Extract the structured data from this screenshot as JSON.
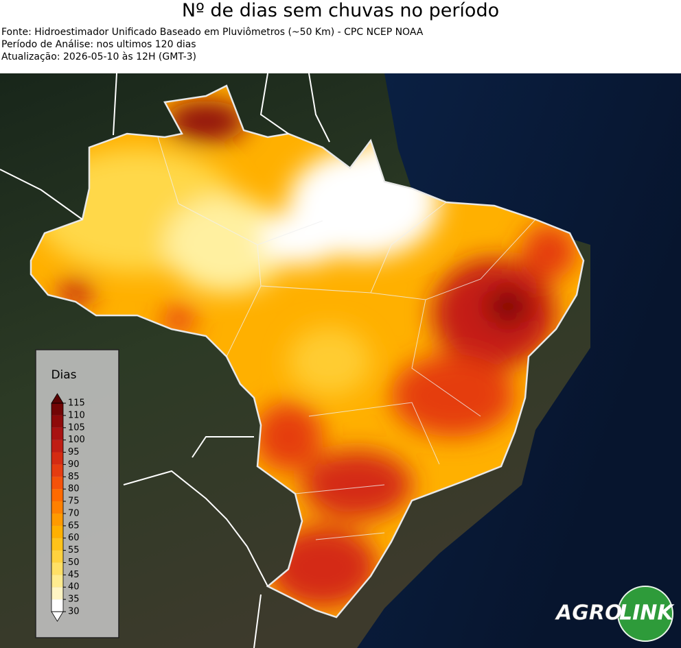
{
  "header": {
    "title": "Nº de dias sem chuvas no período",
    "lines": [
      "Fonte: Hidroestimador Unificado Baseado em Pluviômetros (~50 Km) - CPC NCEP NOAA",
      "Período de Análise: nos ultimos 120 dias",
      "Atualização: 2026-05-10 às 12H (GMT-3)"
    ]
  },
  "legend": {
    "title": "Dias",
    "ticks": [
      30,
      35,
      40,
      45,
      50,
      55,
      60,
      65,
      70,
      75,
      80,
      85,
      90,
      95,
      100,
      105,
      110,
      115
    ],
    "colors": [
      "#ffffff",
      "#fff5c4",
      "#ffec8f",
      "#ffe066",
      "#ffd23f",
      "#ffc31a",
      "#ffb000",
      "#ff9a00",
      "#ff8000",
      "#ff6a00",
      "#f4520a",
      "#e53c10",
      "#d42b12",
      "#bf1d14",
      "#a81212",
      "#8e0a0a",
      "#720505"
    ]
  },
  "logo": {
    "left": "AGRO",
    "right": "LINK"
  }
}
